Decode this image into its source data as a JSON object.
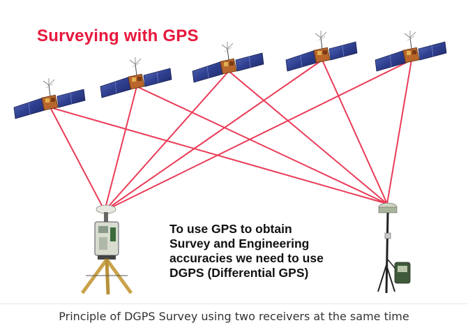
{
  "figure": {
    "title": "Surveying with GPS",
    "note_lines": [
      "To use GPS to obtain",
      "Survey and Engineering",
      "accuracies we need to use",
      "DGPS (Differential GPS)"
    ],
    "caption": "Principle of DGPS Survey using two receivers at the same time"
  },
  "colors": {
    "title": "#e8173c",
    "signal_line": "#ea3b57",
    "solar_panel": "#2f3f8f",
    "satellite_body": "#b8662c"
  },
  "icons": {
    "satellite": "satellite-icon",
    "receiver_tripod": "gps-receiver-tripod-icon",
    "receiver_pole": "gps-receiver-pole-icon"
  }
}
